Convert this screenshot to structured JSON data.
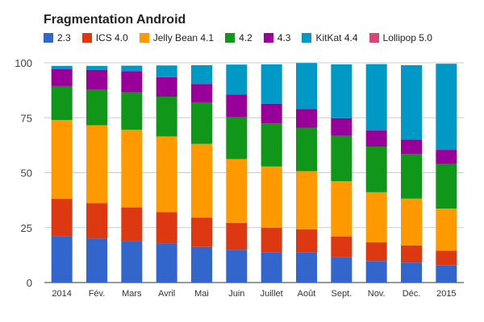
{
  "chart_data": {
    "type": "bar",
    "stacked": true,
    "title": "Fragmentation Android",
    "xlabel": "",
    "ylabel": "",
    "ylim": [
      0,
      100
    ],
    "yticks": [
      0,
      25,
      50,
      75,
      100
    ],
    "grid": true,
    "legend_position": "top",
    "categories": [
      "2014",
      "Fév.",
      "Mars",
      "Avril",
      "Mai",
      "Juin",
      "Juillet",
      "Août",
      "Sept.",
      "Nov.",
      "Déc.",
      "2015"
    ],
    "series": [
      {
        "name": "2.3",
        "color": "#3366cc",
        "values": [
          21.2,
          20.0,
          19.0,
          17.8,
          16.2,
          14.9,
          13.6,
          13.6,
          11.4,
          9.8,
          9.1,
          7.8
        ]
      },
      {
        "name": "ICS 4.0",
        "color": "#dc3912",
        "values": [
          16.9,
          16.1,
          15.2,
          14.3,
          13.4,
          12.3,
          11.4,
          10.6,
          9.6,
          8.5,
          7.8,
          6.7
        ]
      },
      {
        "name": "Jelly Bean 4.1",
        "color": "#ff9900",
        "values": [
          35.9,
          35.5,
          35.3,
          34.4,
          33.5,
          29.0,
          27.8,
          26.5,
          25.1,
          22.8,
          21.3,
          19.2
        ]
      },
      {
        "name": "4.2",
        "color": "#109618",
        "values": [
          15.4,
          16.3,
          17.1,
          18.1,
          18.8,
          19.1,
          19.7,
          19.8,
          20.7,
          20.8,
          20.4,
          20.3
        ]
      },
      {
        "name": "4.3",
        "color": "#990099",
        "values": [
          7.8,
          8.9,
          9.6,
          8.9,
          8.5,
          10.3,
          8.9,
          8.5,
          8.0,
          7.3,
          6.4,
          6.4
        ]
      },
      {
        "name": "KitKat 4.4",
        "color": "#0099c6",
        "values": [
          1.4,
          1.8,
          2.5,
          5.3,
          8.5,
          13.6,
          17.9,
          20.9,
          24.5,
          30.2,
          33.9,
          39.1
        ]
      },
      {
        "name": "Lollipop 5.0",
        "color": "#dd4477",
        "values": [
          0,
          0,
          0,
          0,
          0,
          0,
          0,
          0,
          0,
          0,
          0,
          0.1
        ]
      }
    ]
  }
}
